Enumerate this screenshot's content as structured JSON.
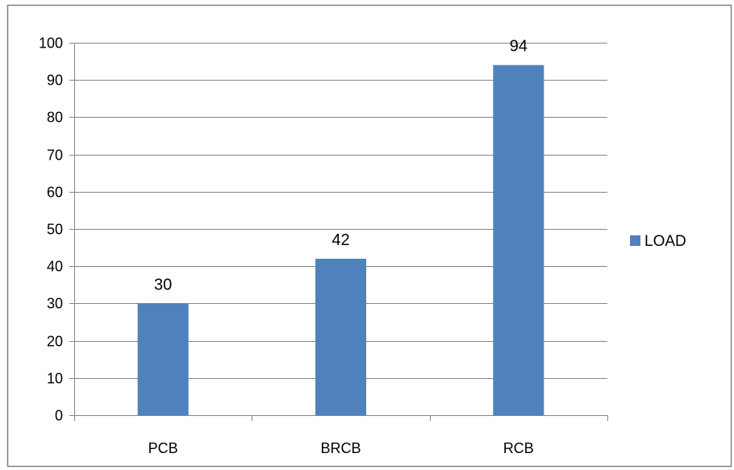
{
  "chart_data": {
    "type": "bar",
    "categories": [
      "PCB",
      "BRCB",
      "RCB"
    ],
    "series": [
      {
        "name": "LOAD",
        "values": [
          30,
          42,
          94
        ],
        "color": "#4F81BD"
      }
    ],
    "data_labels": [
      "30",
      "42",
      "94"
    ],
    "ylim": [
      0,
      100
    ],
    "yticks": [
      0,
      10,
      20,
      30,
      40,
      50,
      60,
      70,
      80,
      90,
      100
    ],
    "grid": true,
    "legend": {
      "position": "right"
    },
    "title": "",
    "xlabel": "",
    "ylabel": ""
  }
}
